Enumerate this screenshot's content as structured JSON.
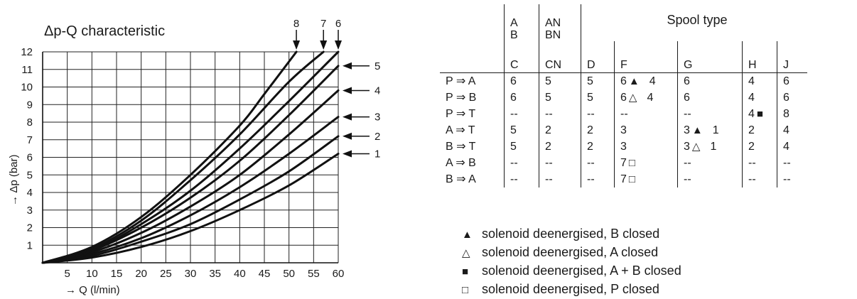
{
  "chart_data": {
    "type": "line",
    "title": "Δp-Q characteristic",
    "xlabel": "→ Q (l/min)",
    "ylabel": "→ Δp (bar)",
    "xlim": [
      0,
      60
    ],
    "ylim": [
      0,
      12
    ],
    "x_ticks": [
      "5",
      "10",
      "15",
      "20",
      "25",
      "30",
      "35",
      "40",
      "45",
      "50",
      "55",
      "60"
    ],
    "y_ticks": [
      "1",
      "2",
      "3",
      "4",
      "5",
      "6",
      "7",
      "8",
      "9",
      "10",
      "11",
      "12"
    ],
    "grid": true,
    "series": [
      {
        "name": "1",
        "x": [
          0,
          10,
          20,
          30,
          40,
          50,
          60
        ],
        "y": [
          0,
          0.3,
          0.9,
          1.8,
          3.0,
          4.4,
          6.2
        ],
        "label_side": "right"
      },
      {
        "name": "2",
        "x": [
          0,
          10,
          20,
          30,
          40,
          50,
          60
        ],
        "y": [
          0,
          0.4,
          1.2,
          2.2,
          3.6,
          5.2,
          7.2
        ],
        "label_side": "right"
      },
      {
        "name": "3",
        "x": [
          0,
          10,
          20,
          30,
          40,
          50,
          60
        ],
        "y": [
          0,
          0.5,
          1.4,
          2.7,
          4.3,
          6.2,
          8.3
        ],
        "label_side": "right"
      },
      {
        "name": "4",
        "x": [
          0,
          10,
          20,
          30,
          40,
          50,
          60
        ],
        "y": [
          0,
          0.6,
          1.7,
          3.2,
          5.0,
          7.3,
          9.8
        ],
        "label_side": "right"
      },
      {
        "name": "5",
        "x": [
          0,
          10,
          20,
          30,
          40,
          50,
          60
        ],
        "y": [
          0,
          0.7,
          2.0,
          3.7,
          5.8,
          8.4,
          11.2
        ],
        "label_side": "right"
      },
      {
        "name": "6",
        "x": [
          0,
          10,
          20,
          30,
          40,
          50,
          60
        ],
        "y": [
          0,
          0.7,
          2.2,
          4.1,
          6.5,
          9.2,
          12.0
        ],
        "label_side": "top"
      },
      {
        "name": "7",
        "x": [
          0,
          10,
          20,
          30,
          40,
          50,
          57
        ],
        "y": [
          0,
          0.8,
          2.4,
          4.7,
          7.3,
          10.3,
          12.0
        ],
        "label_side": "top"
      },
      {
        "name": "8",
        "x": [
          0,
          10,
          20,
          30,
          40,
          45,
          51.5
        ],
        "y": [
          0,
          0.9,
          2.6,
          5.0,
          7.8,
          9.6,
          12.0
        ],
        "label_side": "top"
      }
    ]
  },
  "spool_table": {
    "header_top": [
      "A",
      "AN",
      "Spool type"
    ],
    "header_mid": [
      "B",
      "BN"
    ],
    "header_bot": [
      "C",
      "CN",
      "D",
      "F",
      "G",
      "H",
      "J"
    ],
    "rows": [
      {
        "label": "P ⇒ A",
        "c1": "6",
        "c2": "5",
        "c3": "5",
        "c4a": "6",
        "c4sym": "▲",
        "c4b": "4",
        "c5a": "6",
        "c5sym": "",
        "c5b": "",
        "c6a": "4",
        "c6sym": "",
        "c7": "6"
      },
      {
        "label": "P ⇒ B",
        "c1": "6",
        "c2": "5",
        "c3": "5",
        "c4a": "6",
        "c4sym": "△",
        "c4b": "4",
        "c5a": "6",
        "c5sym": "",
        "c5b": "",
        "c6a": "4",
        "c6sym": "",
        "c7": "6"
      },
      {
        "label": "P ⇒ T",
        "c1": "--",
        "c2": "--",
        "c3": "--",
        "c4a": "--",
        "c4sym": "",
        "c4b": "",
        "c5a": "--",
        "c5sym": "",
        "c5b": "",
        "c6a": "4",
        "c6sym": "■",
        "c7": "8"
      },
      {
        "label": "A ⇒ T",
        "c1": "5",
        "c2": "2",
        "c3": "2",
        "c4a": "3",
        "c4sym": "",
        "c4b": "",
        "c5a": "3",
        "c5sym": "▲",
        "c5b": "1",
        "c6a": "2",
        "c6sym": "",
        "c7": "4"
      },
      {
        "label": "B ⇒ T",
        "c1": "5",
        "c2": "2",
        "c3": "2",
        "c4a": "3",
        "c4sym": "",
        "c4b": "",
        "c5a": "3",
        "c5sym": "△",
        "c5b": "1",
        "c6a": "2",
        "c6sym": "",
        "c7": "4"
      },
      {
        "label": "A ⇒ B",
        "c1": "--",
        "c2": "--",
        "c3": "--",
        "c4a": "7",
        "c4sym": "□",
        "c4b": "",
        "c5a": "--",
        "c5sym": "",
        "c5b": "",
        "c6a": "--",
        "c6sym": "",
        "c7": "--"
      },
      {
        "label": "B ⇒ A",
        "c1": "--",
        "c2": "--",
        "c3": "--",
        "c4a": "7",
        "c4sym": "□",
        "c4b": "",
        "c5a": "--",
        "c5sym": "",
        "c5b": "",
        "c6a": "--",
        "c6sym": "",
        "c7": "--"
      }
    ]
  },
  "legend": [
    {
      "symbol": "▲",
      "text": "solenoid deenergised, B closed"
    },
    {
      "symbol": "△",
      "text": "solenoid deenergised, A closed"
    },
    {
      "symbol": "■",
      "text": "solenoid deenergised, A + B closed"
    },
    {
      "symbol": "□",
      "text": "solenoid deenergised, P closed"
    }
  ]
}
